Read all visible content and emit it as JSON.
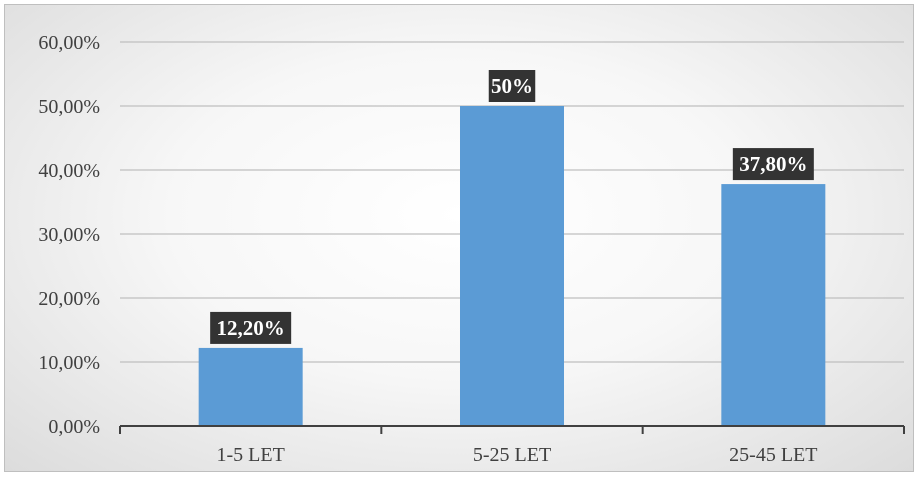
{
  "chart_data": {
    "type": "bar",
    "categories": [
      "1-5 LET",
      "5-25 LET",
      "25-45 LET"
    ],
    "values": [
      12.2,
      50,
      37.8
    ],
    "data_labels": [
      "12,20%",
      "50%",
      "37,80%"
    ],
    "y_ticks": [
      "0,00%",
      "10,00%",
      "20,00%",
      "30,00%",
      "40,00%",
      "50,00%",
      "60,00%"
    ],
    "ylim": [
      0,
      60
    ],
    "title": "",
    "xlabel": "",
    "ylabel": "",
    "grid": true,
    "legend": "none",
    "colors": {
      "bar": "#5b9bd5",
      "data_label_bg": "#333333",
      "gridline": "#bfbfbf",
      "axis": "#404040"
    }
  }
}
